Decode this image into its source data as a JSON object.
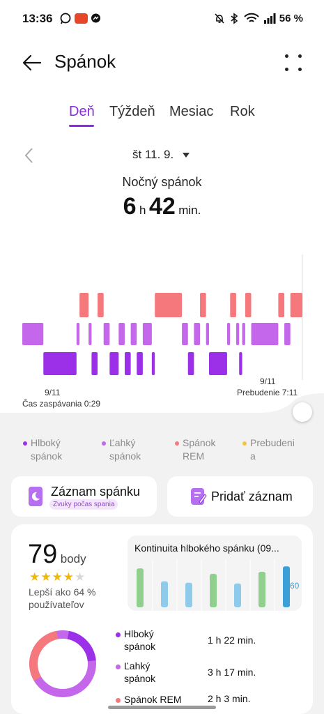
{
  "status_bar": {
    "time": "13:36",
    "battery": "56 %"
  },
  "app_bar": {
    "title": "Spánok"
  },
  "tabs": [
    {
      "label": "Deň",
      "active": true
    },
    {
      "label": "Týždeň",
      "active": false
    },
    {
      "label": "Mesiac",
      "active": false
    },
    {
      "label": "Rok",
      "active": false
    }
  ],
  "date": {
    "label": "št 11. 9."
  },
  "summary": {
    "label": "Nočný spánok",
    "hours": "6",
    "hours_unit": "h",
    "minutes": "42",
    "minutes_unit": "min."
  },
  "chart_axis": {
    "start_date": "9/11",
    "start_label": "Čas zaspávania 0:29",
    "end_date": "9/11",
    "end_label": "Prebudenie 7:11"
  },
  "legend": {
    "deep": "Hlboký\nspánok",
    "light": "Ľahký\nspánok",
    "rem": "Spánok\nREM",
    "awake": "Prebudeni\na"
  },
  "colors": {
    "accent": "#8a2be2",
    "deep": "#9b30e8",
    "light": "#c467ea",
    "rem": "#f5787c",
    "awake": "#f5c43d",
    "bar_green": "#90cf8e",
    "bar_blue": "#8ecbea"
  },
  "actions": {
    "record": {
      "label": "Záznam spánku",
      "chip": "Zvuky počas spania"
    },
    "add": {
      "label": "Pridať záznam"
    }
  },
  "score": {
    "value": "79",
    "unit": "body",
    "stars": 4,
    "max_stars": 5,
    "comparison": "Lepší ako 64 %\npoužívateľov"
  },
  "continuity": {
    "title": "Kontinuita hlbokého spánku (09...",
    "values": [
      57,
      38,
      36,
      49,
      35,
      52,
      60
    ],
    "highlight_label": "60"
  },
  "breakdown": [
    {
      "name": "Hlboký\nspánok",
      "value": "1 h 22 min."
    },
    {
      "name": "Ľahký\nspánok",
      "value": "3 h 17 min."
    },
    {
      "name": "Spánok REM",
      "value": "2 h 3 min."
    }
  ],
  "stages": [
    [
      "light",
      0,
      7
    ],
    [
      "deep",
      7,
      18
    ],
    [
      "light",
      18,
      19
    ],
    [
      "rem",
      19,
      22
    ],
    [
      "light",
      22,
      23
    ],
    [
      "deep",
      23,
      25
    ],
    [
      "rem",
      25,
      27
    ],
    [
      "light",
      27,
      29
    ],
    [
      "deep",
      29,
      32
    ],
    [
      "light",
      32,
      34
    ],
    [
      "deep",
      34,
      36
    ],
    [
      "light",
      36,
      38
    ],
    [
      "deep",
      38,
      40
    ],
    [
      "light",
      40,
      43
    ],
    [
      "deep",
      43,
      44
    ],
    [
      "rem",
      44,
      53
    ],
    [
      "light",
      53,
      55
    ],
    [
      "deep",
      55,
      57
    ],
    [
      "light",
      57,
      59
    ],
    [
      "rem",
      59,
      61
    ],
    [
      "light",
      61,
      62
    ],
    [
      "deep",
      62,
      68
    ],
    [
      "light",
      68,
      69
    ],
    [
      "rem",
      69,
      71
    ],
    [
      "light",
      71,
      72
    ],
    [
      "deep",
      72,
      73
    ],
    [
      "light",
      73,
      74
    ],
    [
      "rem",
      74,
      76
    ],
    [
      "light",
      76,
      85
    ],
    [
      "rem",
      85,
      87
    ],
    [
      "light",
      87,
      89
    ],
    [
      "rem",
      89,
      93
    ]
  ]
}
